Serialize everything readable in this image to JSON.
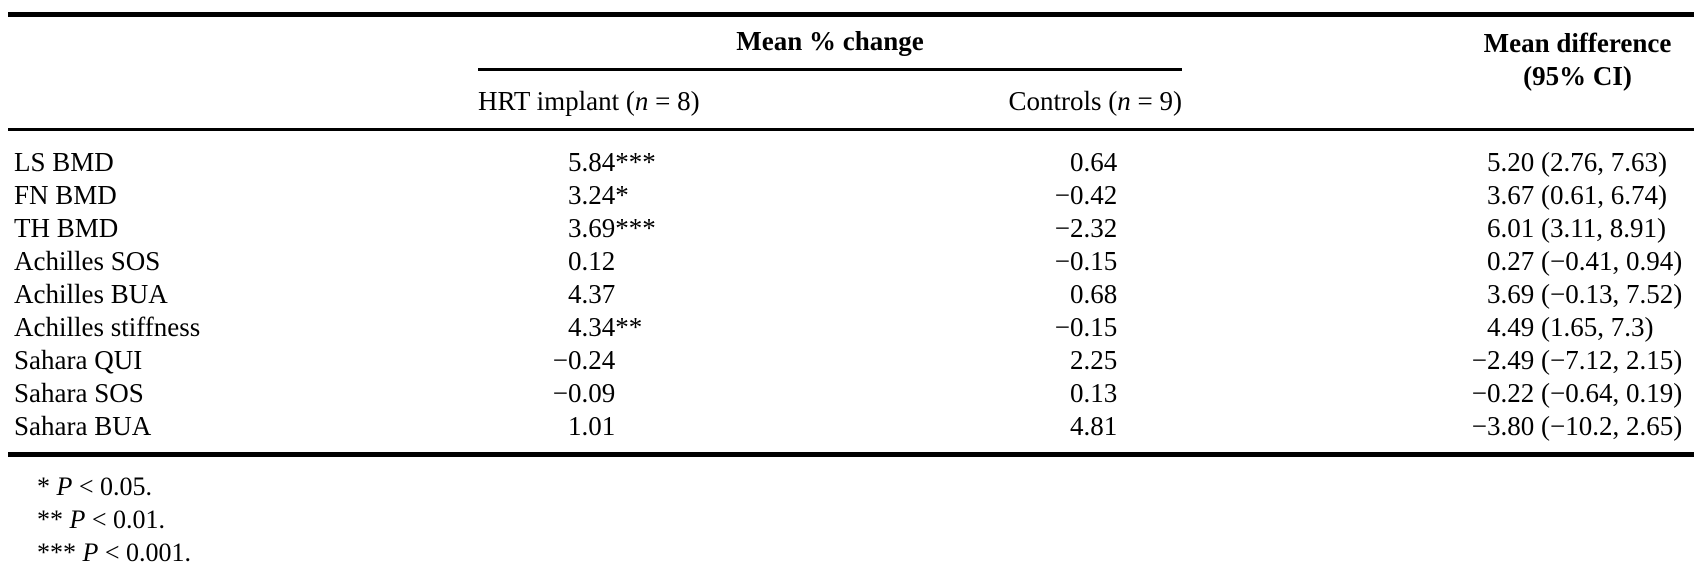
{
  "table": {
    "group_header": "Mean % change",
    "mean_diff_header": {
      "line1": "Mean difference",
      "line2": "(95% CI)"
    },
    "subheaders": {
      "hrt": {
        "prefix": "HRT implant (",
        "italic": "n",
        "suffix": " = 8)"
      },
      "controls": {
        "prefix": "Controls (",
        "italic": "n",
        "suffix": " = 9)"
      }
    },
    "rows": [
      {
        "label": "LS BMD",
        "hrt": "5.84",
        "hrt_sig": "***",
        "controls": "0.64",
        "mean_diff": "5.20 (2.76, 7.63)"
      },
      {
        "label": "FN BMD",
        "hrt": "3.24",
        "hrt_sig": "*",
        "controls": "−0.42",
        "mean_diff": "3.67 (0.61, 6.74)"
      },
      {
        "label": "TH BMD",
        "hrt": "3.69",
        "hrt_sig": "***",
        "controls": "−2.32",
        "mean_diff": "6.01 (3.11, 8.91)"
      },
      {
        "label": "Achilles SOS",
        "hrt": "0.12",
        "hrt_sig": "",
        "controls": "−0.15",
        "mean_diff": "0.27 (−0.41, 0.94)"
      },
      {
        "label": "Achilles BUA",
        "hrt": "4.37",
        "hrt_sig": "",
        "controls": "0.68",
        "mean_diff": "3.69 (−0.13, 7.52)"
      },
      {
        "label": "Achilles stiffness",
        "hrt": "4.34",
        "hrt_sig": "**",
        "controls": "−0.15",
        "mean_diff": "4.49 (1.65, 7.3)"
      },
      {
        "label": "Sahara QUI",
        "hrt": "−0.24",
        "hrt_sig": "",
        "controls": "2.25",
        "mean_diff": "−2.49 (−7.12, 2.15)"
      },
      {
        "label": "Sahara SOS",
        "hrt": "−0.09",
        "hrt_sig": "",
        "controls": "0.13",
        "mean_diff": "−0.22 (−0.64, 0.19)"
      },
      {
        "label": "Sahara BUA",
        "hrt": "1.01",
        "hrt_sig": "",
        "controls": "4.81",
        "mean_diff": "−3.80 (−10.2, 2.65)"
      }
    ],
    "footnotes": [
      {
        "stars": "*",
        "symbol": "P",
        "text": "< 0.05."
      },
      {
        "stars": "**",
        "symbol": "P",
        "text": "< 0.01."
      },
      {
        "stars": "***",
        "symbol": "P",
        "text": "< 0.001."
      }
    ],
    "colors": {
      "text": "#000000",
      "background": "#ffffff",
      "rule": "#000000"
    }
  }
}
